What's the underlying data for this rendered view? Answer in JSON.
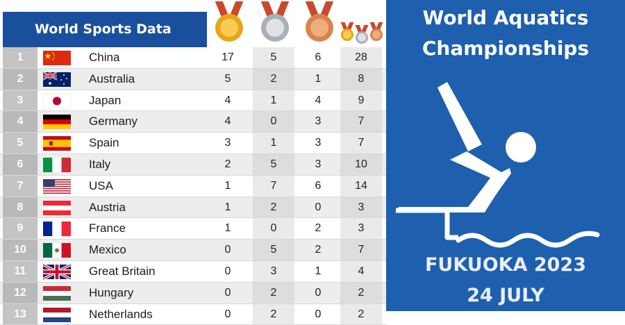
{
  "table": {
    "title": "World Sports Data",
    "rows": [
      {
        "rank": "1",
        "country": "China",
        "flag": "china-flag",
        "gold": "17",
        "silver": "5",
        "bronze": "6",
        "total": "28"
      },
      {
        "rank": "2",
        "country": "Australia",
        "flag": "australia-flag",
        "gold": "5",
        "silver": "2",
        "bronze": "1",
        "total": "8"
      },
      {
        "rank": "3",
        "country": "Japan",
        "flag": "japan-flag",
        "gold": "4",
        "silver": "1",
        "bronze": "4",
        "total": "9"
      },
      {
        "rank": "4",
        "country": "Germany",
        "flag": "germany-flag",
        "gold": "4",
        "silver": "0",
        "bronze": "3",
        "total": "7"
      },
      {
        "rank": "5",
        "country": "Spain",
        "flag": "spain-flag",
        "gold": "3",
        "silver": "1",
        "bronze": "3",
        "total": "7"
      },
      {
        "rank": "6",
        "country": "Italy",
        "flag": "italy-flag",
        "gold": "2",
        "silver": "5",
        "bronze": "3",
        "total": "10"
      },
      {
        "rank": "7",
        "country": "USA",
        "flag": "usa-flag",
        "gold": "1",
        "silver": "7",
        "bronze": "6",
        "total": "14"
      },
      {
        "rank": "8",
        "country": "Austria",
        "flag": "austria-flag",
        "gold": "1",
        "silver": "2",
        "bronze": "0",
        "total": "3"
      },
      {
        "rank": "9",
        "country": "France",
        "flag": "france-flag",
        "gold": "1",
        "silver": "0",
        "bronze": "2",
        "total": "3"
      },
      {
        "rank": "10",
        "country": "Mexico",
        "flag": "mexico-flag",
        "gold": "0",
        "silver": "5",
        "bronze": "2",
        "total": "7"
      },
      {
        "rank": "11",
        "country": "Great Britain",
        "flag": "great-britain-flag",
        "gold": "0",
        "silver": "3",
        "bronze": "1",
        "total": "4"
      },
      {
        "rank": "12",
        "country": "Hungary",
        "flag": "hungary-flag",
        "gold": "0",
        "silver": "2",
        "bronze": "0",
        "total": "2"
      },
      {
        "rank": "13",
        "country": "Netherlands",
        "flag": "netherlands-flag",
        "gold": "0",
        "silver": "2",
        "bronze": "0",
        "total": "2"
      }
    ]
  },
  "promo": {
    "title_line1": "World Aquatics",
    "title_line2": "Championships",
    "city": "FUKUOKA 2023",
    "date": "24 JULY"
  },
  "colors": {
    "header_blue": "#1a4f9e",
    "promo_blue": "#1e5fae",
    "gold": "#e8a51a",
    "silver": "#a9b0b7",
    "bronze": "#d9834d"
  }
}
